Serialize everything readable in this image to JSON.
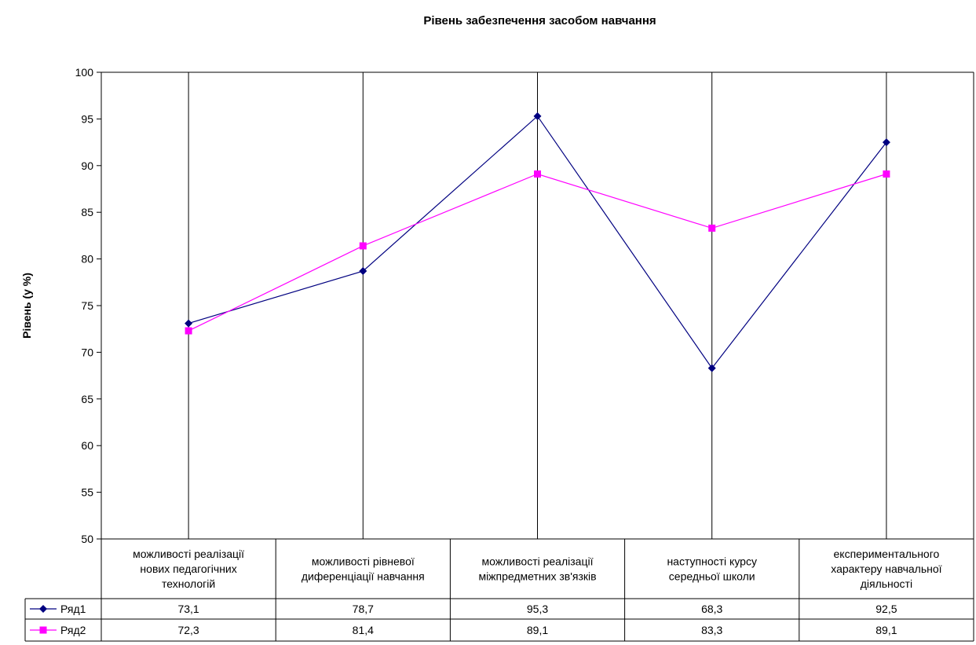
{
  "chart_data": {
    "type": "line",
    "title": "Рівень забезпечення засобом навчання",
    "ylabel": "Рівень (у %)",
    "xlabel": "",
    "ylim": [
      50,
      100
    ],
    "yticks": [
      50,
      55,
      60,
      65,
      70,
      75,
      80,
      85,
      90,
      95,
      100
    ],
    "grid": "vertical",
    "categories": [
      [
        "можливості реалізації",
        "нових педагогічних",
        "технологій"
      ],
      [
        "можливості рівневої",
        "диференціації навчання"
      ],
      [
        "можливості реалізації",
        "міжпредметних зв'язків"
      ],
      [
        "наступності курсу",
        "середньої школи"
      ],
      [
        "експериментального",
        "характеру навчальної",
        "діяльності"
      ]
    ],
    "series": [
      {
        "name": "Ряд1",
        "color": "#000080",
        "marker": "diamond",
        "values": [
          73.1,
          78.7,
          95.3,
          68.3,
          92.5
        ],
        "labels": [
          "73,1",
          "78,7",
          "95,3",
          "68,3",
          "92,5"
        ]
      },
      {
        "name": "Ряд2",
        "color": "#FF00FF",
        "marker": "square",
        "values": [
          72.3,
          81.4,
          89.1,
          83.3,
          89.1
        ],
        "labels": [
          "72,3",
          "81,4",
          "89,1",
          "83,3",
          "89,1"
        ]
      }
    ],
    "legend": "data-table"
  }
}
